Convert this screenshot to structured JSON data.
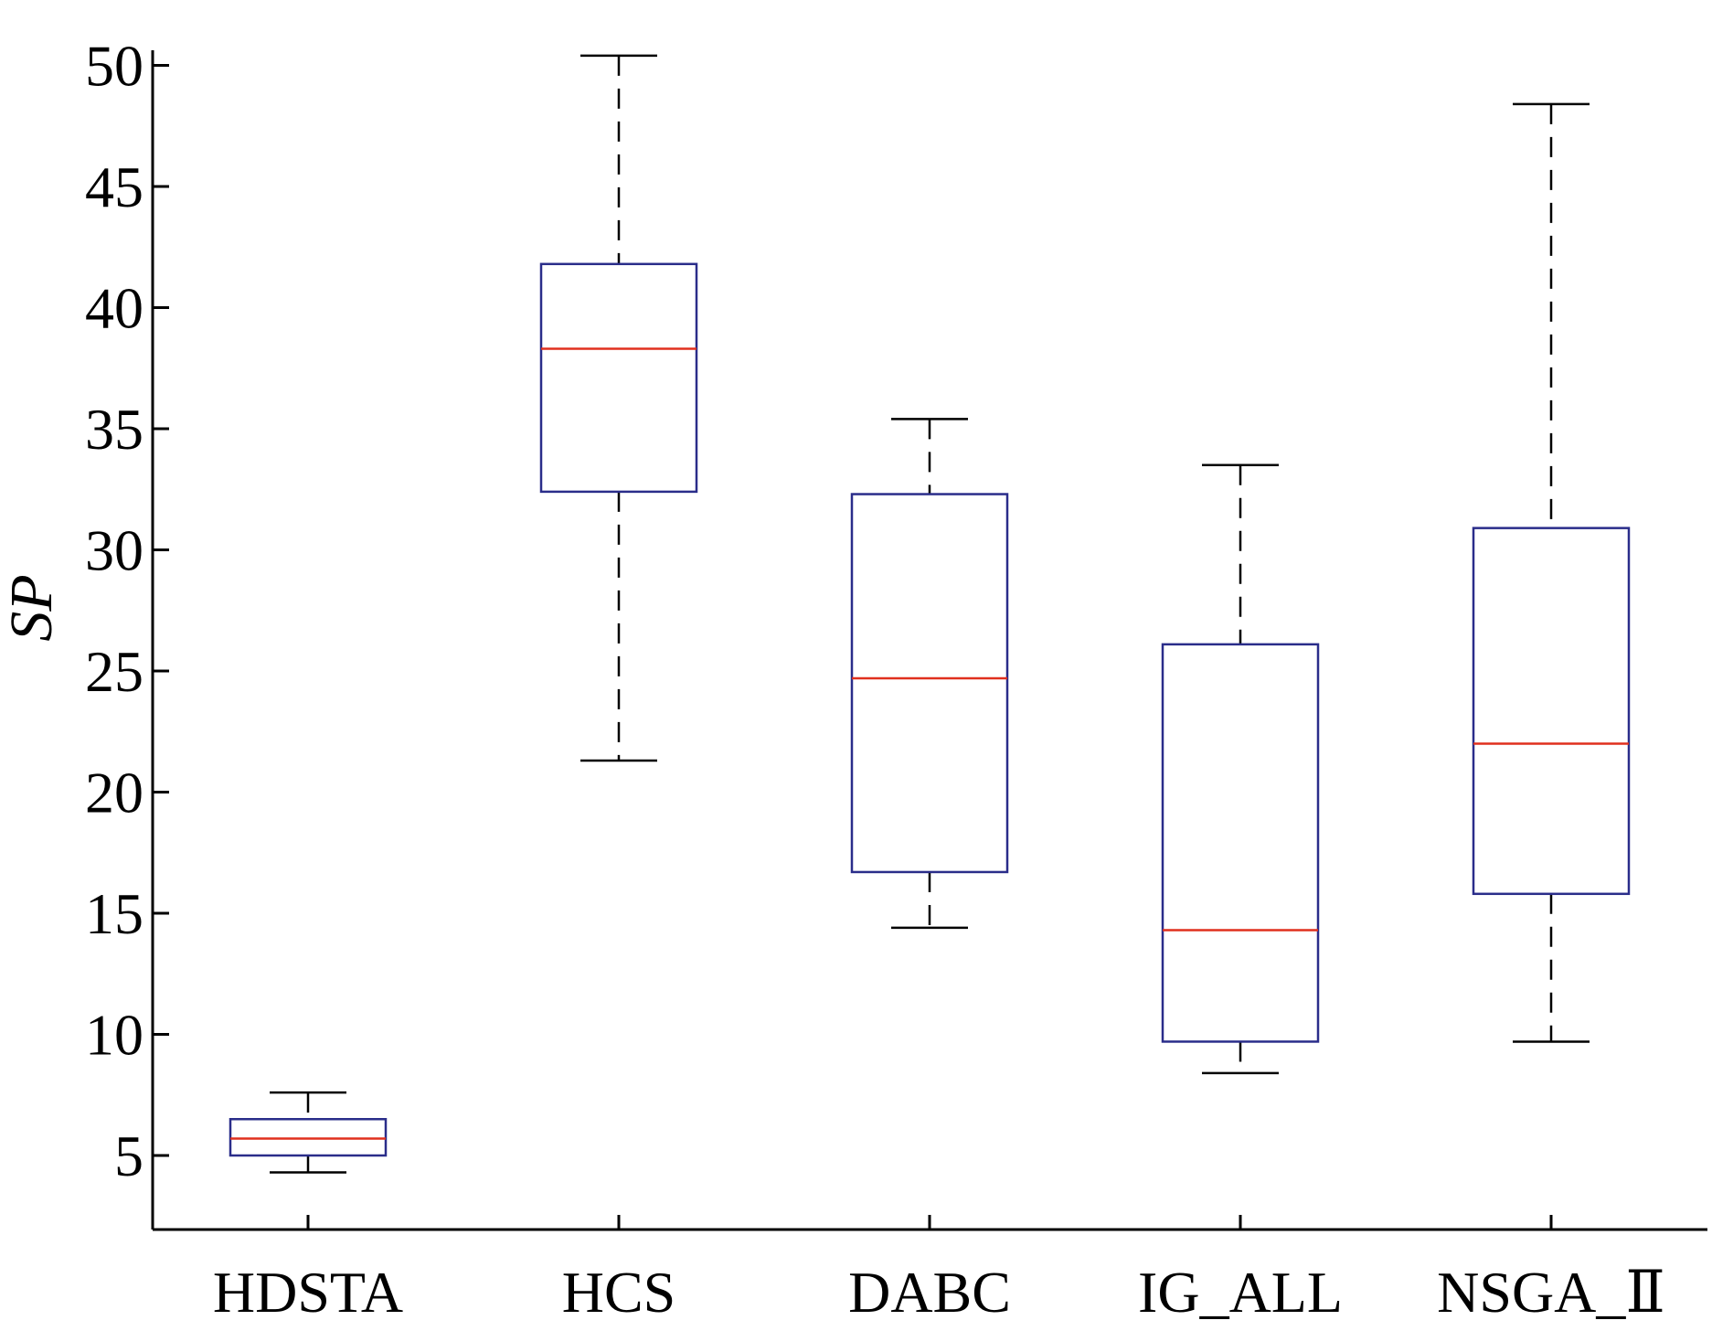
{
  "chart_data": {
    "type": "box",
    "title": "",
    "xlabel": "",
    "ylabel": "SP",
    "ylim": [
      2,
      50
    ],
    "yticks": [
      "5",
      "10",
      "15",
      "20",
      "25",
      "30",
      "35",
      "40",
      "45",
      "50"
    ],
    "ytick_values": [
      5,
      10,
      15,
      20,
      25,
      30,
      35,
      40,
      45,
      50
    ],
    "categories": [
      "HDSTA",
      "HCS",
      "DABC",
      "IG_ALL",
      "NSGA_Ⅱ"
    ],
    "boxes": [
      {
        "category": "HDSTA",
        "whisker_low": 4.3,
        "q1": 5.0,
        "median": 5.7,
        "q3": 6.5,
        "whisker_high": 7.6
      },
      {
        "category": "HCS",
        "whisker_low": 21.3,
        "q1": 32.4,
        "median": 38.3,
        "q3": 41.8,
        "whisker_high": 50.4
      },
      {
        "category": "DABC",
        "whisker_low": 14.4,
        "q1": 16.7,
        "median": 24.7,
        "q3": 32.3,
        "whisker_high": 35.4
      },
      {
        "category": "IG_ALL",
        "whisker_low": 8.4,
        "q1": 9.7,
        "median": 14.3,
        "q3": 26.1,
        "whisker_high": 33.5
      },
      {
        "category": "NSGA_Ⅱ",
        "whisker_low": 9.7,
        "q1": 15.8,
        "median": 22.0,
        "q3": 30.9,
        "whisker_high": 48.4
      }
    ],
    "colors": {
      "box": "#2a2d8a",
      "median": "#e0301e",
      "whisker": "#000000",
      "axis": "#000000"
    },
    "grid": false,
    "legend": "none"
  }
}
